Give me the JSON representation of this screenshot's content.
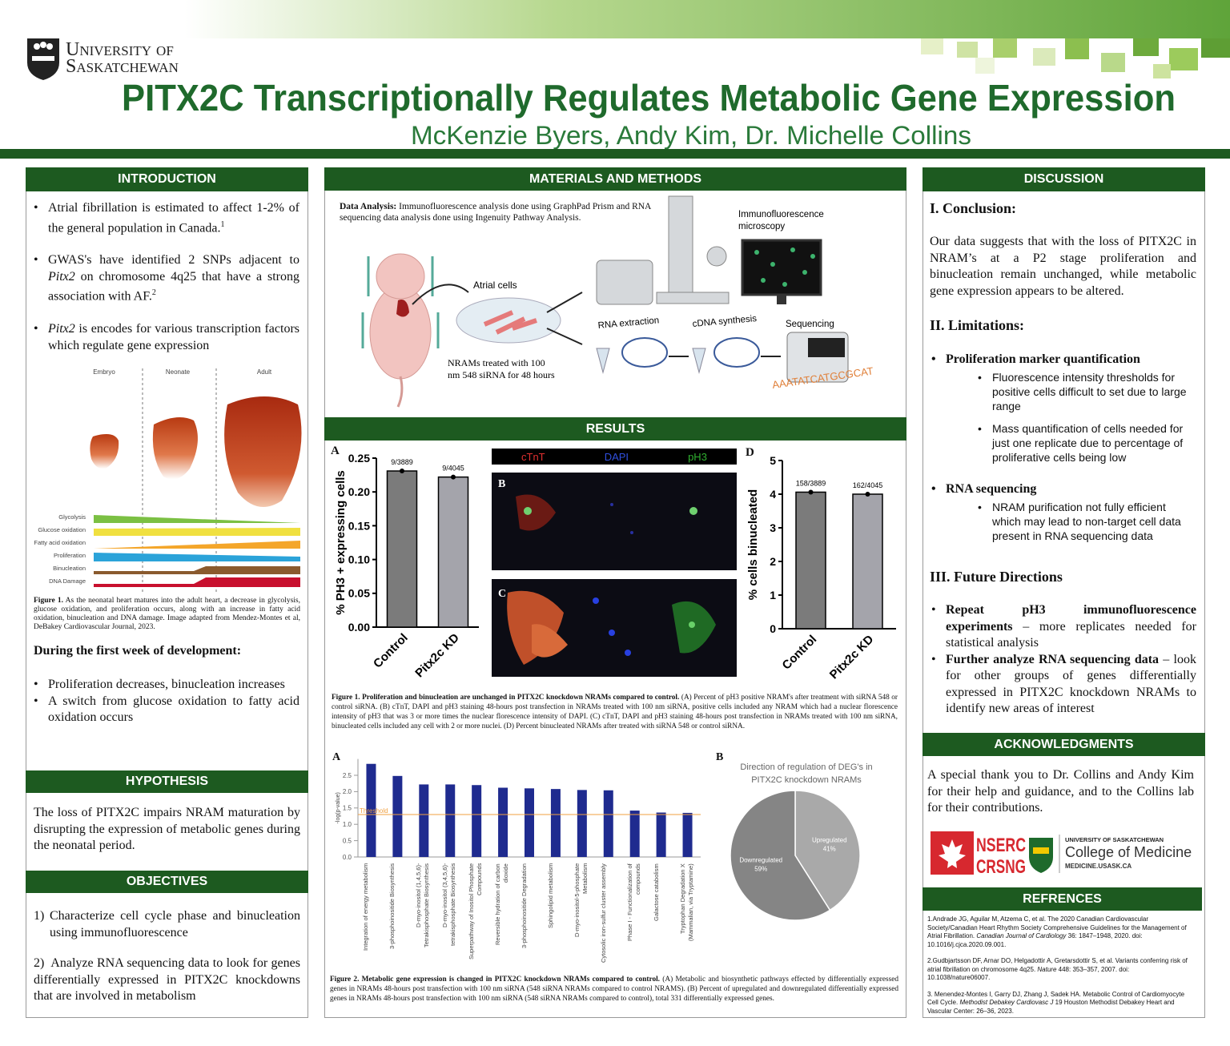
{
  "header": {
    "university_line1": "University of",
    "university_line2": "Saskatchewan",
    "title": "PITX2C Transcriptionally Regulates Metabolic Gene Expression",
    "authors": "McKenzie Byers, Andy Kim, Dr. Michelle Collins"
  },
  "introduction": {
    "heading": "INTRODUCTION",
    "bullet1": [
      "Atrial fibrillation is estimated to affect 1-2% of the general population in Canada.",
      "1"
    ],
    "bullet2": [
      "GWAS's have identified 2 SNPs adjacent to ",
      "Pitx2",
      " on chromosome 4q25 that have a strong association with AF.",
      "2"
    ],
    "bullet3": [
      "Pitx2",
      " is encodes for various transcription factors which regulate gene expression"
    ],
    "figure": {
      "stages": [
        "Embryo",
        "Neonate",
        "Adult"
      ],
      "processes": [
        "Glycolysis",
        "Glucose oxidation",
        "Fatty acid oxidation",
        "Proliferation",
        "Binucleation",
        "DNA Damage"
      ]
    },
    "caption": [
      "Figure 1.",
      "As the neonatal heart matures into the adult heart, a decrease in glycolysis, glucose oxidation, and proliferation occurs, along with an increase in fatty acid oxidation, binucleation and DNA damage. Image adapted from Mendez-Montes et al, DeBakey Cardiovascular Journal, 2023."
    ],
    "subheading": "During the first week of development:",
    "bullets2": [
      "Proliferation decreases, binucleation increases",
      "A switch from glucose oxidation to fatty acid oxidation occurs"
    ]
  },
  "hypothesis": {
    "heading": "HYPOTHESIS",
    "text": "The loss of PITX2C impairs NRAM maturation by disrupting the expression of metabolic genes during the neonatal period."
  },
  "objectives": {
    "heading": "OBJECTIVES",
    "items": [
      [
        "1)",
        "Characterize cell cycle phase and binucleation using immunofluorescence"
      ],
      [
        "2)",
        "Analyze RNA sequencing data to look for genes differentially expressed in PITX2C knockdowns that are involved in metabolism"
      ]
    ]
  },
  "methods": {
    "heading": "MATERIALS AND METHODS",
    "analysis": [
      "Data Analysis:",
      " Immunofluorescence analysis done using GraphPad Prism and RNA sequencing data analysis done using Ingenuity Pathway Analysis."
    ],
    "labels": {
      "microscopy": [
        "Immunofluorescence",
        "microscopy"
      ],
      "atrial": "Atrial cells",
      "treated": [
        "NRAMs treated with 100",
        "nm 548 siRNA for 48 hours"
      ],
      "rna": "RNA extraction",
      "cdna": "cDNA synthesis",
      "seq": "Sequencing",
      "dna": "AAATATCATGCGCAT"
    }
  },
  "results": {
    "heading": "RESULTS",
    "panel_a": "A",
    "panel_b": "B",
    "panel_c": "C",
    "panel_d": "D",
    "stains": [
      "cTnT",
      "DAPI",
      "pH3"
    ],
    "fig1_caption": [
      "Figure 1. Proliferation and binucleation are unchanged in PITX2C knockdown NRAMs compared to control.",
      "(A) Percent of pH3 positive NRAM's after treatment with siRNA 548 or control siRNA. (B) cTnT, DAPI and pH3 staining 48-hours post transfection in NRAMs treated with 100 nm siRNA, positive cells included any NRAM which had a nuclear florescence intensity of pH3 that was 3 or more times the nuclear florescence intensity of DAPI. (C) cTnT, DAPI and pH3 staining 48-hours post transfection in NRAMs treated with 100 nm siRNA, binucleated cells included any cell with 2 or more nuclei. (D) Percent binucleated NRAMs after treated with siRNA 548 or control siRNA."
    ],
    "fig2_panel_a": "A",
    "fig2_panel_b": "B",
    "fig2_caption": [
      "Figure 2. Metabolic gene expression is changed in PITX2C knockdown NRAMs compared to control.",
      "(A) Metabolic and biosynthetic pathways effected by differentially expressed genes in NRAMs 48-hours post transfection with 100 nm siRNA (548 siRNA NRAMs compared to control NRAMS). (B) Percent of upregulated and downregulated differentially expressed genes in NRAMs 48-hours post transfection with 100 nm siRNA (548 siRNA NRAMs compared to control), total 331 differentially expressed genes."
    ]
  },
  "discussion": {
    "heading": "DISCUSSION",
    "conclusion_title": "I. Conclusion:",
    "conclusion": "Our data suggests that with the loss of PITX2C in NRAM’s at a P2 stage proliferation and binucleation remain unchanged, while metabolic gene expression appears to be altered.",
    "limitations_title": "II. Limitations:",
    "limitations": [
      {
        "title": "Proliferation marker quantification",
        "items": [
          "Fluorescence intensity thresholds for positive cells difficult to set due to large range",
          "Mass quantification of cells needed for just one replicate due to percentage of proliferative cells being low"
        ]
      },
      {
        "title": "RNA sequencing",
        "items": [
          "NRAM purification not fully efficient which may lead to non-target cell data present in RNA sequencing data"
        ]
      }
    ],
    "future_title": "III. Future Directions",
    "future": [
      [
        "Repeat pH3 immunofluorescence experiments",
        " – more replicates needed for statistical analysis"
      ],
      [
        "Further analyze RNA sequencing data",
        " – look for other groups of genes differentially expressed in PITX2C knockdown NRAMs to identify new areas of interest"
      ]
    ]
  },
  "acknowledgments": {
    "heading": "ACKNOWLEDGMENTS",
    "text": "A special thank you to Dr. Collins and Andy Kim for their help and guidance, and to the Collins lab for their contributions.",
    "logos": [
      "NSERC",
      "CRSNG",
      "UNIVERSITY OF SASKATCHEWAN",
      "College of Medicine",
      "MEDICINE.USASK.CA"
    ]
  },
  "references": {
    "heading": "REFRENCES",
    "items": [
      [
        "1.Andrade JG, Aguilar M, Atzema C, et al. The 2020 Canadian Cardiovascular Society/Canadian Heart Rhythm Society Comprehensive Guidelines for the Management of Atrial Fibrillation. ",
        "Canadian Journal of Cardiology",
        " 36: 1847–1948, 2020. doi: 10.1016/j.cjca.2020.09.001."
      ],
      [
        "2.Gudbjartsson DF, Arnar DO, Helgadottir A, Gretarsdottir S, et al. Variants conferring risk of atrial fibrillation on chromosome 4q25. ",
        "Nature",
        " 448: 353–357, 2007. doi: 10.1038/nature06007."
      ],
      [
        "3. Menendez-Montes I, Garry DJ, Zhang J, Sadek HA. Metabolic Control of Cardiomyocyte Cell Cycle. ",
        "Methodist Debakey Cardiovasc J",
        " 19 Houston Methodist Debakey Heart and Vascular Center: 26–36, 2023."
      ]
    ]
  },
  "chart_data": [
    {
      "type": "bar",
      "ylabel": "% PH3 + expressing cells",
      "categories": [
        "Control",
        "Pitx2c KD"
      ],
      "values": [
        0.231,
        0.222
      ],
      "annotations": [
        "9/3889",
        "9/4045"
      ],
      "colors": [
        "#7b7b7b",
        "#a4a4ab"
      ],
      "ylim": [
        0,
        0.25
      ],
      "yticks": [
        {
          "value": 0,
          "label": "0.00"
        },
        0.05,
        {
          "value": 0.1,
          "label": "0.10"
        },
        0.15,
        {
          "value": 0.2,
          "label": "0.20"
        },
        0.25
      ]
    },
    {
      "type": "bar",
      "ylabel": "% cells binucleated",
      "categories": [
        "Control",
        "Pitx2c KD"
      ],
      "values": [
        4.06,
        4.0
      ],
      "annotations": [
        "158/3889",
        "162/4045"
      ],
      "colors": [
        "#7b7b7b",
        "#a4a4ab"
      ],
      "ylim": [
        0,
        5
      ],
      "yticks": [
        0,
        1,
        2,
        3,
        4,
        5
      ]
    },
    {
      "type": "bar",
      "ylabel": "-log(p-value)",
      "categories": [
        "Integration of energy metabolism",
        "3-phosphoinositide Biosynthesis",
        "D-myo-inositol (1,4,5,6)-Tetrakisphosphate Biosynthesis",
        "D-myo-inositol (3,4,5,6)-tetrakisphosphate Biosynthesis",
        "Superpathway of Inositol Phosphate Compounds",
        "Reversible hydration of carbon dioxide",
        "3-phosphoinositide Degradation",
        "Sphingolipid metabolism",
        "D-myo-inositol-5-phosphate Metabolism",
        "Cytosolic iron-sulfur cluster assembly",
        "Phase I - Functionalization of compounds",
        "Galactose catabolism",
        "Tryptophan Degradation X (Mammalian, via Tryptamine)"
      ],
      "values": [
        2.85,
        2.48,
        2.22,
        2.22,
        2.2,
        2.12,
        2.1,
        2.08,
        2.05,
        2.04,
        1.42,
        1.36,
        1.35
      ],
      "color": "#1f2b8f",
      "ylim": [
        0,
        3
      ],
      "yticks": [
        {
          "value": 0,
          "label": "0.0"
        },
        0.5,
        {
          "value": 1,
          "label": "1.0"
        },
        1.5,
        {
          "value": 2,
          "label": "2.0"
        },
        2.5
      ],
      "threshold": 1.3,
      "threshold_label": "Threshold",
      "threshold_color": "#f0a040"
    },
    {
      "type": "pie",
      "title": "Direction of regulation of DEG's in PITX2C knockdown NRAMs",
      "categories": [
        "Upregulated",
        "Downregulated"
      ],
      "values": [
        41,
        59
      ],
      "value_labels": [
        "41%",
        "59%"
      ],
      "colors": [
        "#a9a9a9",
        "#858585"
      ]
    }
  ]
}
